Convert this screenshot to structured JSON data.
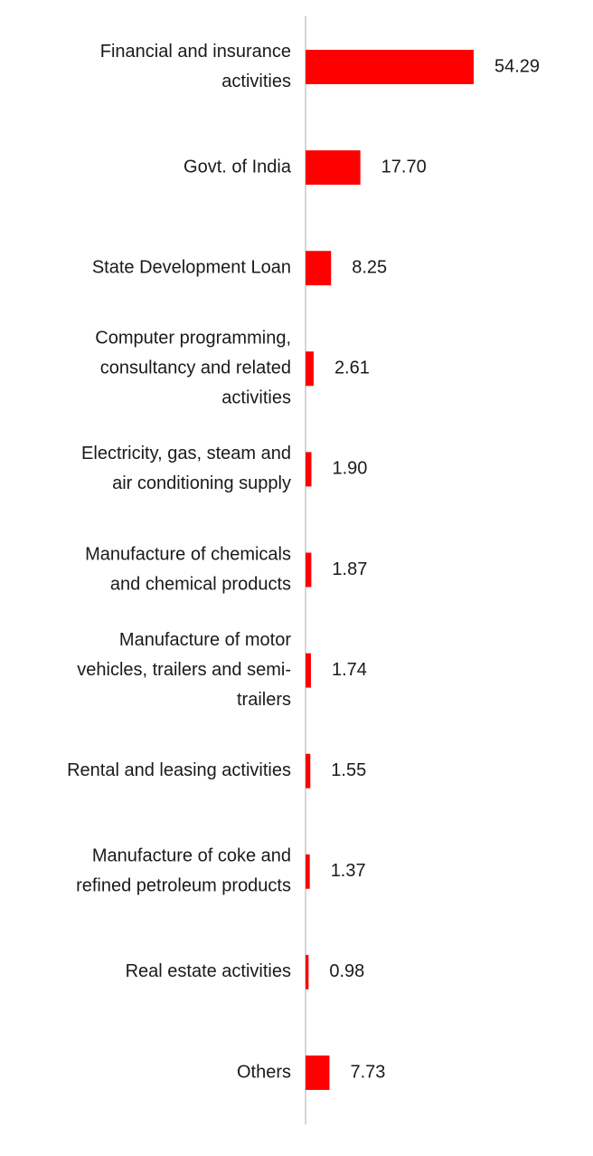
{
  "chart_data": {
    "type": "bar",
    "orientation": "horizontal",
    "categories": [
      "Financial and insurance activities",
      "Govt. of India",
      "State Development Loan",
      "Computer programming, consultancy and related activities",
      "Electricity, gas, steam and air conditioning supply",
      "Manufacture of chemicals and chemical products",
      "Manufacture of motor vehicles, trailers and semi-trailers",
      "Rental and leasing activities",
      "Manufacture of coke and refined petroleum products",
      "Real estate activities",
      "Others"
    ],
    "category_label_lines": [
      [
        "Financial and insurance",
        "activities"
      ],
      [
        "Govt. of India"
      ],
      [
        "State Development Loan"
      ],
      [
        "Computer programming,",
        "consultancy and related",
        "activities"
      ],
      [
        "Electricity, gas, steam and",
        "air conditioning supply"
      ],
      [
        "Manufacture of chemicals",
        "and chemical products"
      ],
      [
        "Manufacture of motor",
        "vehicles, trailers and semi-",
        "trailers"
      ],
      [
        "Rental and leasing activities"
      ],
      [
        "Manufacture of coke and",
        "refined petroleum products"
      ],
      [
        "Real estate activities"
      ],
      [
        "Others"
      ]
    ],
    "values": [
      54.29,
      17.7,
      8.25,
      2.61,
      1.9,
      1.87,
      1.74,
      1.55,
      1.37,
      0.98,
      7.73
    ],
    "value_labels": [
      "54.29",
      "17.70",
      "8.25",
      "2.61",
      "1.90",
      "1.87",
      "1.74",
      "1.55",
      "1.37",
      "0.98",
      "7.73"
    ],
    "title": "",
    "xlabel": "",
    "ylabel": "",
    "xlim": [
      0,
      60
    ],
    "grid": false,
    "legend": "none",
    "bar_color": "#ff0000",
    "axis_color": "#c8c8c8"
  }
}
